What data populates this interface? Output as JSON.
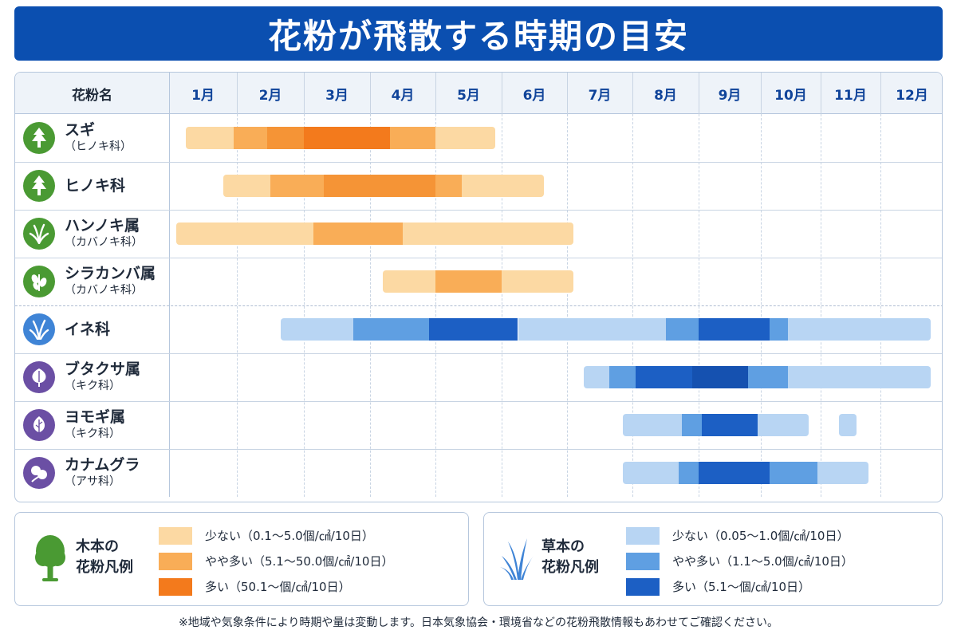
{
  "title": "花粉が飛散する時期の目安",
  "colors": {
    "title_bg": "#0b4fb0",
    "tree_low": "#fcd9a3",
    "tree_mid": "#f9ad57",
    "tree_high": "#f37a1c",
    "grass_low": "#b8d5f3",
    "grass_mid": "#5f9fe2",
    "grass_high": "#1c5fc4"
  },
  "chart_data": {
    "type": "table",
    "name_header": "花粉名",
    "months": [
      "1月",
      "2月",
      "3月",
      "4月",
      "5月",
      "6月",
      "7月",
      "8月",
      "9月",
      "10月",
      "11月",
      "12月"
    ],
    "rows": [
      {
        "name": "スギ",
        "family": "（ヒノキ科）",
        "group": "tree",
        "icon": "conifer-icon",
        "segments": [
          {
            "start": 1.25,
            "end": 1.95,
            "level": "low"
          },
          {
            "start": 1.95,
            "end": 2.45,
            "level": "mid"
          },
          {
            "start": 2.45,
            "end": 3.0,
            "level": "high-lite"
          },
          {
            "start": 3.0,
            "end": 4.3,
            "level": "high"
          },
          {
            "start": 4.3,
            "end": 5.0,
            "level": "mid"
          },
          {
            "start": 5.0,
            "end": 5.9,
            "level": "low"
          }
        ]
      },
      {
        "name": "ヒノキ科",
        "family": "",
        "group": "tree",
        "icon": "conifer-icon",
        "segments": [
          {
            "start": 1.8,
            "end": 2.5,
            "level": "low"
          },
          {
            "start": 2.5,
            "end": 3.3,
            "level": "mid"
          },
          {
            "start": 3.3,
            "end": 5.0,
            "level": "high-lite"
          },
          {
            "start": 5.0,
            "end": 5.4,
            "level": "mid"
          },
          {
            "start": 5.4,
            "end": 6.65,
            "level": "low"
          }
        ]
      },
      {
        "name": "ハンノキ属",
        "family": "（カバノキ科）",
        "group": "tree",
        "icon": "grass-tuft-icon",
        "segments": [
          {
            "start": 1.1,
            "end": 3.15,
            "level": "low"
          },
          {
            "start": 3.15,
            "end": 4.5,
            "level": "mid"
          },
          {
            "start": 4.5,
            "end": 7.1,
            "level": "low"
          }
        ]
      },
      {
        "name": "シラカンバ属",
        "family": "（カバノキ科）",
        "group": "tree",
        "icon": "leafy-branch-icon",
        "segments": [
          {
            "start": 4.2,
            "end": 5.0,
            "level": "low"
          },
          {
            "start": 5.0,
            "end": 6.0,
            "level": "mid"
          },
          {
            "start": 6.0,
            "end": 7.1,
            "level": "low"
          }
        ]
      },
      {
        "name": "イネ科",
        "family": "",
        "group": "grass",
        "icon": "grass-icon",
        "segments": [
          {
            "start": 2.65,
            "end": 3.75,
            "level": "low"
          },
          {
            "start": 3.75,
            "end": 4.9,
            "level": "mid"
          },
          {
            "start": 4.9,
            "end": 6.25,
            "level": "high"
          },
          {
            "start": 6.25,
            "end": 8.5,
            "level": "low"
          },
          {
            "start": 8.5,
            "end": 9.0,
            "level": "mid"
          },
          {
            "start": 9.0,
            "end": 10.15,
            "level": "high"
          },
          {
            "start": 10.15,
            "end": 10.45,
            "level": "mid"
          },
          {
            "start": 10.45,
            "end": 12.8,
            "level": "low"
          }
        ]
      },
      {
        "name": "ブタクサ属",
        "family": "（キク科）",
        "group": "grass",
        "icon": "ragweed-leaf-icon",
        "segments": [
          {
            "start": 7.25,
            "end": 7.65,
            "level": "low"
          },
          {
            "start": 7.65,
            "end": 8.05,
            "level": "mid"
          },
          {
            "start": 8.05,
            "end": 8.9,
            "level": "high"
          },
          {
            "start": 8.9,
            "end": 9.8,
            "level": "high-dark"
          },
          {
            "start": 9.8,
            "end": 10.45,
            "level": "mid"
          },
          {
            "start": 10.45,
            "end": 12.8,
            "level": "low"
          }
        ]
      },
      {
        "name": "ヨモギ属",
        "family": "（キク科）",
        "group": "grass",
        "icon": "mugwort-leaf-icon",
        "segments": [
          {
            "start": 7.85,
            "end": 8.75,
            "level": "low"
          },
          {
            "start": 8.75,
            "end": 9.05,
            "level": "mid"
          },
          {
            "start": 9.05,
            "end": 9.95,
            "level": "high"
          },
          {
            "start": 9.95,
            "end": 10.8,
            "level": "low"
          },
          {
            "start": 11.3,
            "end": 11.6,
            "level": "low"
          }
        ]
      },
      {
        "name": "カナムグラ",
        "family": "（アサ科）",
        "group": "grass",
        "icon": "hop-leaf-icon",
        "segments": [
          {
            "start": 7.85,
            "end": 8.7,
            "level": "low"
          },
          {
            "start": 8.7,
            "end": 9.0,
            "level": "mid"
          },
          {
            "start": 9.0,
            "end": 10.15,
            "level": "high"
          },
          {
            "start": 10.15,
            "end": 10.95,
            "level": "mid"
          },
          {
            "start": 10.95,
            "end": 11.8,
            "level": "low"
          }
        ]
      }
    ]
  },
  "legend_tree": {
    "title_line1": "木本の",
    "title_line2": "花粉凡例",
    "icon": "tree-icon",
    "items": [
      {
        "label": "少ない（0.1〜5.0個/㎠/10日）",
        "color": "#fcd9a3"
      },
      {
        "label": "やや多い（5.1〜50.0個/㎠/10日）",
        "color": "#f9ad57"
      },
      {
        "label": "多い（50.1〜個/㎠/10日）",
        "color": "#f37a1c"
      }
    ]
  },
  "legend_grass": {
    "title_line1": "草本の",
    "title_line2": "花粉凡例",
    "icon": "grass-icon",
    "items": [
      {
        "label": "少ない（0.05〜1.0個/㎠/10日）",
        "color": "#b8d5f3"
      },
      {
        "label": "やや多い（1.1〜5.0個/㎠/10日）",
        "color": "#5f9fe2"
      },
      {
        "label": "多い（5.1〜個/㎠/10日）",
        "color": "#1c5fc4"
      }
    ]
  },
  "footnote": "※地域や気象条件により時期や量は変動します。日本気象協会・環境省などの花粉飛散情報もあわせてご確認ください。"
}
